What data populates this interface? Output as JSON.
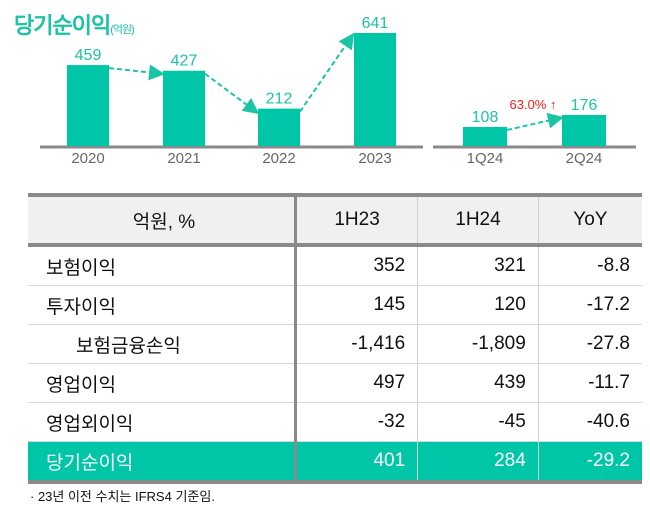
{
  "chart_title": "당기순이익",
  "chart_unit": "(억원)",
  "chart_data": [
    {
      "type": "bar",
      "title": "당기순이익(억원)",
      "categories": [
        "2020",
        "2021",
        "2022",
        "2023"
      ],
      "values": [
        459,
        427,
        212,
        641
      ],
      "color": "#00c6a8",
      "trend_arrows": true
    },
    {
      "type": "bar",
      "categories": [
        "1Q24",
        "2Q24"
      ],
      "values": [
        108,
        176
      ],
      "color": "#00c6a8",
      "annotation": "63.0% ↑",
      "annotation_color": "#ff1a1a"
    }
  ],
  "table": {
    "headers": [
      "억원, %",
      "1H23",
      "1H24",
      "YoY"
    ],
    "rows": [
      {
        "label": "보험이익",
        "values": [
          "352",
          "321",
          "-8.8"
        ]
      },
      {
        "label": "투자이익",
        "values": [
          "145",
          "120",
          "-17.2"
        ]
      },
      {
        "label": "보험금융손익",
        "values": [
          "-1,416",
          "-1,809",
          "-27.8"
        ],
        "sub": true
      },
      {
        "label": "영업이익",
        "values": [
          "497",
          "439",
          "-11.7"
        ]
      },
      {
        "label": "영업외이익",
        "values": [
          "-32",
          "-45",
          "-40.6"
        ]
      },
      {
        "label": "당기순이익",
        "values": [
          "401",
          "284",
          "-29.2"
        ],
        "total": true
      }
    ]
  },
  "footnote": "·  23년 이전 수치는 IFRS4 기준임."
}
